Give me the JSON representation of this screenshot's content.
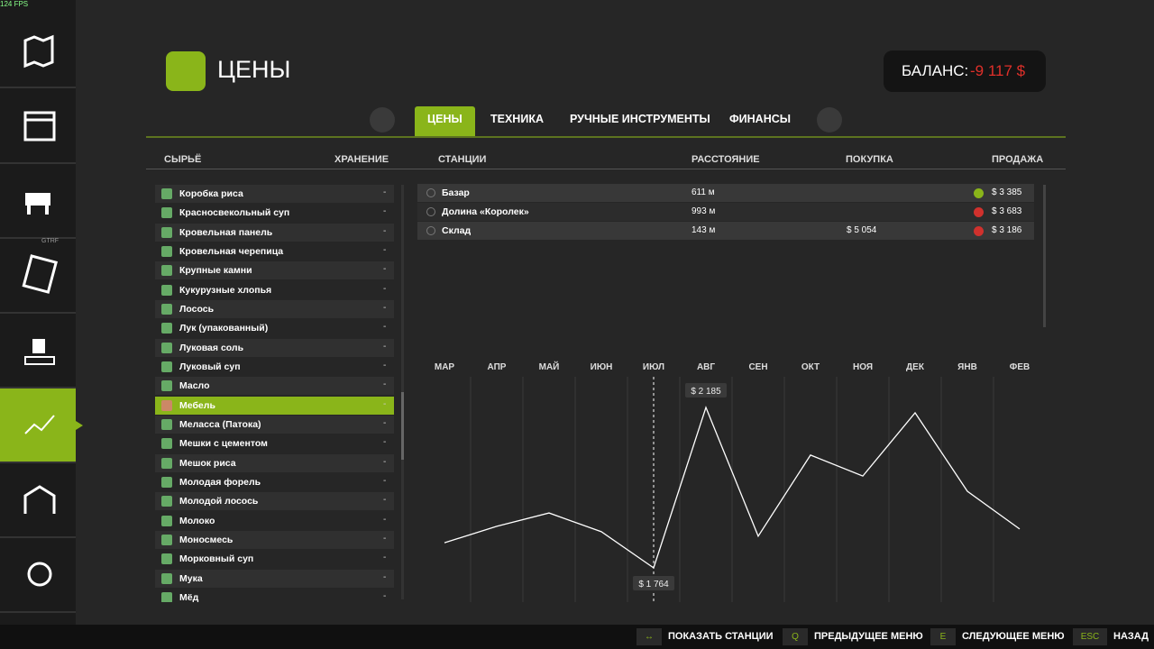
{
  "fps": "124 FPS",
  "overlay": "GTRF",
  "header": {
    "title": "ЦЕНЫ",
    "balance_label": "БАЛАНС:",
    "balance_value": "-9 117 $"
  },
  "tabs": {
    "items": [
      "ЦЕНЫ",
      "ТЕХНИКА",
      "РУЧНЫЕ ИНСТРУМЕНТЫ",
      "ФИНАНСЫ"
    ],
    "active": 0
  },
  "columns": [
    "СЫРЬЁ",
    "ХРАНЕНИЕ",
    "СТАНЦИИ",
    "РАССТОЯНИЕ",
    "ПОКУПКА",
    "ПРОДАЖА"
  ],
  "goods": {
    "selected": 11,
    "rows": [
      [
        "Коробка риса",
        "-"
      ],
      [
        "Красносвекольный суп",
        "-"
      ],
      [
        "Кровельная панель",
        "-"
      ],
      [
        "Кровельная черепица",
        "-"
      ],
      [
        "Крупные камни",
        "-"
      ],
      [
        "Кукурузные хлопья",
        "-"
      ],
      [
        "Лосось",
        "-"
      ],
      [
        "Лук (упакованный)",
        "-"
      ],
      [
        "Луковая соль",
        "-"
      ],
      [
        "Луковый суп",
        "-"
      ],
      [
        "Масло",
        "-"
      ],
      [
        "Мебель",
        "-"
      ],
      [
        "Меласса (Патока)",
        "-"
      ],
      [
        "Мешки с цементом",
        "-"
      ],
      [
        "Мешок риса",
        "-"
      ],
      [
        "Молодая форель",
        "-"
      ],
      [
        "Молодой лосось",
        "-"
      ],
      [
        "Молоко",
        "-"
      ],
      [
        "Моносмесь",
        "-"
      ],
      [
        "Морковный суп",
        "-"
      ],
      [
        "Мука",
        "-"
      ],
      [
        "Мёд",
        "-"
      ]
    ]
  },
  "stations": [
    {
      "name": "Базар",
      "distance": "611 м",
      "buy": "",
      "sell": "$ 3 385",
      "trend": "up"
    },
    {
      "name": "Долина «Королек»",
      "distance": "993 м",
      "buy": "",
      "sell": "$ 3 683",
      "trend": "down"
    },
    {
      "name": "Склад",
      "distance": "143 м",
      "buy": "$ 5 054",
      "sell": "$ 3 186",
      "trend": "down"
    }
  ],
  "chart_data": {
    "type": "line",
    "categories": [
      "МАР",
      "АПР",
      "МАЙ",
      "ИЮН",
      "ИЮЛ",
      "АВГ",
      "СЕН",
      "ОКТ",
      "НОЯ",
      "ДЕК",
      "ЯНВ",
      "ФЕВ"
    ],
    "values": [
      1830,
      1873,
      1908,
      1859,
      1764,
      2185,
      1847,
      2060,
      2005,
      2171,
      1965,
      1866
    ],
    "value_labels": [
      null,
      null,
      null,
      null,
      "$ 1 764",
      "$ 2 185",
      null,
      null,
      null,
      null,
      null,
      null
    ],
    "color": "#ffffff",
    "cursor_index": 4
  },
  "footer": [
    [
      "↔",
      "ПОКАЗАТЬ СТАНЦИИ"
    ],
    [
      "Q",
      "ПРЕДЫДУЩЕЕ МЕНЮ"
    ],
    [
      "E",
      "СЛЕДУЮЩЕЕ МЕНЮ"
    ],
    [
      "ESC",
      "НАЗАД"
    ]
  ]
}
